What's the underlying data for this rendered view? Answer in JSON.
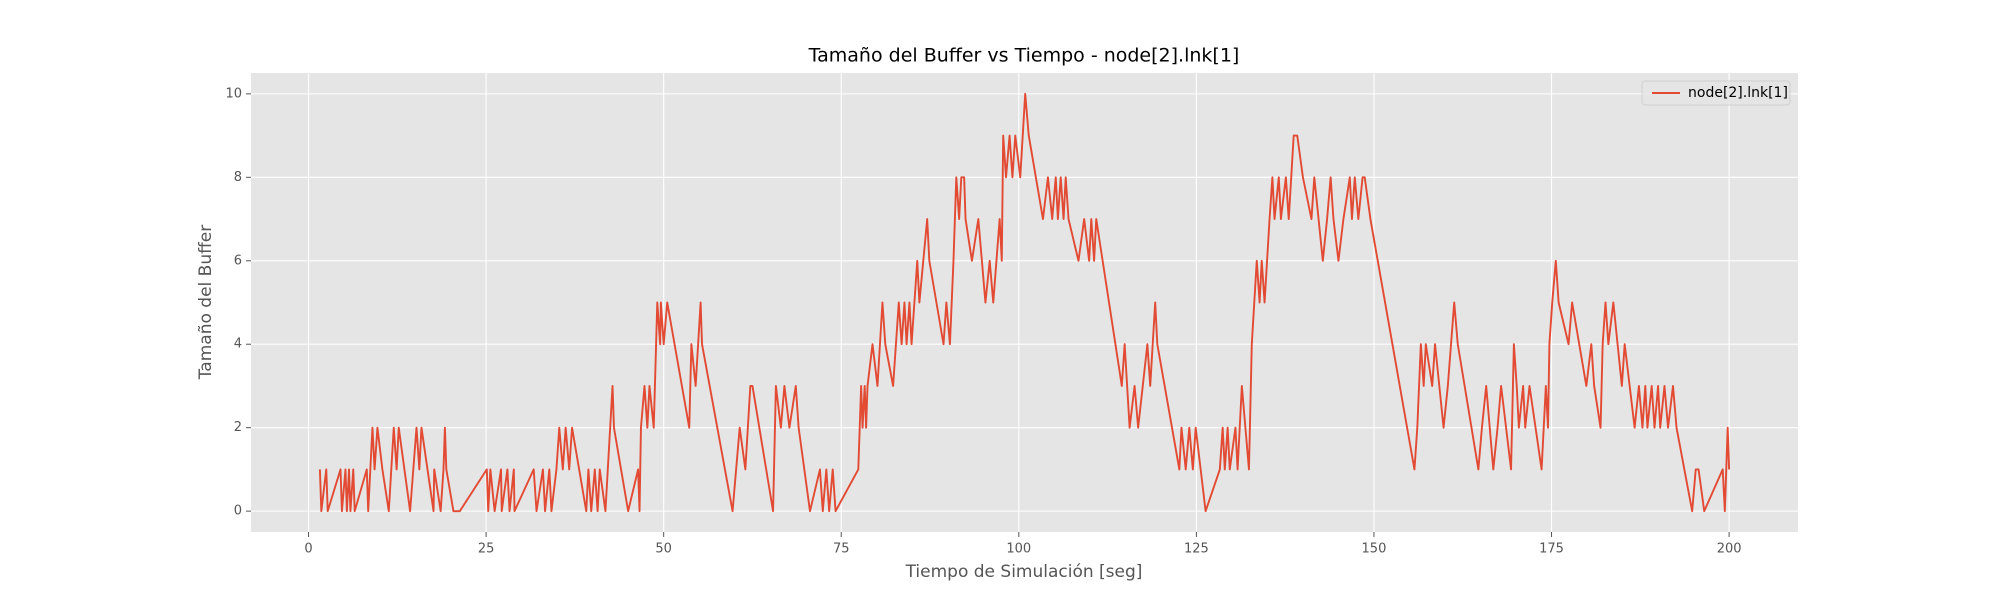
{
  "chart_data": {
    "type": "line",
    "title": "Tamaño del Buffer vs Tiempo - node[2].lnk[1]",
    "x_label": "Tiempo de Simulación [seg]",
    "y_label": "Tamaño del Buffer",
    "x": [
      1.6,
      1.8,
      2.5,
      2.7,
      4.5,
      4.7,
      5.2,
      5.4,
      5.7,
      5.9,
      6.3,
      6.5,
      8.2,
      8.4,
      9.0,
      9.3,
      9.7,
      10.4,
      11.3,
      12.0,
      12.4,
      12.7,
      14.3,
      15.2,
      15.6,
      15.9,
      17.6,
      17.7,
      18.6,
      19.0,
      19.2,
      19.4,
      20.4,
      21.3,
      25.1,
      25.3,
      25.6,
      26.2,
      27.1,
      27.2,
      28.0,
      28.3,
      28.9,
      29.0,
      31.7,
      32.1,
      33.0,
      33.3,
      33.9,
      34.2,
      34.9,
      35.3,
      35.8,
      36.2,
      36.7,
      37.1,
      39.1,
      39.4,
      39.8,
      40.3,
      40.7,
      41.0,
      41.8,
      42.8,
      43.0,
      45.0,
      46.4,
      46.6,
      46.8,
      47.3,
      47.7,
      48.0,
      48.6,
      49.1,
      49.5,
      49.6,
      50.0,
      50.5,
      53.6,
      53.9,
      54.5,
      55.2,
      55.4,
      59.7,
      60.7,
      61.5,
      62.2,
      62.5,
      65.4,
      65.8,
      66.5,
      67.0,
      67.7,
      68.6,
      69.0,
      70.6,
      72.0,
      72.4,
      72.9,
      73.3,
      73.8,
      74.2,
      77.4,
      77.8,
      78.0,
      78.3,
      78.5,
      78.7,
      79.4,
      80.1,
      80.8,
      81.2,
      82.3,
      83.1,
      83.5,
      83.9,
      84.2,
      84.6,
      84.9,
      85.7,
      86.0,
      87.1,
      87.4,
      89.4,
      89.8,
      90.3,
      90.8,
      91.2,
      91.6,
      91.9,
      92.3,
      92.5,
      93.4,
      94.3,
      95.3,
      95.9,
      96.4,
      97.3,
      97.6,
      97.8,
      98.2,
      98.7,
      99.1,
      99.5,
      100.2,
      100.9,
      101.4,
      103.4,
      104.1,
      104.7,
      105.2,
      105.5,
      105.9,
      106.3,
      106.6,
      107.0,
      108.4,
      109.2,
      109.9,
      110.2,
      110.6,
      110.9,
      114.5,
      114.9,
      115.6,
      116.3,
      116.8,
      118.1,
      118.5,
      119.2,
      119.5,
      122.6,
      122.9,
      123.5,
      124.0,
      124.5,
      124.9,
      126.3,
      128.3,
      128.7,
      129.0,
      129.4,
      129.7,
      130.5,
      130.8,
      131.4,
      132.4,
      132.8,
      133.5,
      133.9,
      134.2,
      134.6,
      135.3,
      135.7,
      136.0,
      136.6,
      136.9,
      137.6,
      138.0,
      138.7,
      139.2,
      140.0,
      141.2,
      141.6,
      142.8,
      143.4,
      143.9,
      144.3,
      145.0,
      145.7,
      146.6,
      146.9,
      147.3,
      147.8,
      148.4,
      148.7,
      149.5,
      155.7,
      156.1,
      156.6,
      157.0,
      157.3,
      158.2,
      158.6,
      159.8,
      160.4,
      161.3,
      161.8,
      164.7,
      165.2,
      165.8,
      166.8,
      167.4,
      167.9,
      169.3,
      169.7,
      170.1,
      170.4,
      171.0,
      171.3,
      171.9,
      173.6,
      174.2,
      174.5,
      174.7,
      175.1,
      175.6,
      176.0,
      177.4,
      177.9,
      179.9,
      180.6,
      181.0,
      181.9,
      182.2,
      182.6,
      183.0,
      183.7,
      184.9,
      185.3,
      186.7,
      187.3,
      187.8,
      188.2,
      188.5,
      189.1,
      189.5,
      190.0,
      190.3,
      190.9,
      191.4,
      192.1,
      192.6,
      194.8,
      195.3,
      195.7,
      196.5,
      199.1,
      199.4,
      199.8,
      200.0
    ],
    "series": [
      {
        "name": "node[2].lnk[1]",
        "color": "#E24A33",
        "values": [
          1,
          0,
          1,
          0,
          1,
          0,
          1,
          0,
          1,
          0,
          1,
          0,
          1,
          0,
          2,
          1,
          2,
          1,
          0,
          2,
          1,
          2,
          0,
          2,
          1,
          2,
          0,
          1,
          0,
          1,
          2,
          1,
          0,
          0,
          1,
          0,
          1,
          0,
          1,
          0,
          1,
          0,
          1,
          0,
          1,
          0,
          1,
          0,
          1,
          0,
          1,
          2,
          1,
          2,
          1,
          2,
          0,
          1,
          0,
          1,
          0,
          1,
          0,
          3,
          2,
          0,
          1,
          0,
          2,
          3,
          2,
          3,
          2,
          5,
          4,
          5,
          4,
          5,
          2,
          4,
          3,
          5,
          4,
          0,
          2,
          1,
          3,
          3,
          0,
          3,
          2,
          3,
          2,
          3,
          2,
          0,
          1,
          0,
          1,
          0,
          1,
          0,
          1,
          3,
          2,
          3,
          2,
          3,
          4,
          3,
          5,
          4,
          3,
          5,
          4,
          5,
          4,
          5,
          4,
          6,
          5,
          7,
          6,
          4,
          5,
          4,
          6,
          8,
          7,
          8,
          8,
          7,
          6,
          7,
          5,
          6,
          5,
          7,
          6,
          9,
          8,
          9,
          8,
          9,
          8,
          10,
          9,
          7,
          8,
          7,
          8,
          7,
          8,
          7,
          8,
          7,
          6,
          7,
          6,
          7,
          6,
          7,
          3,
          4,
          2,
          3,
          2,
          4,
          3,
          5,
          4,
          1,
          2,
          1,
          2,
          1,
          2,
          0,
          1,
          2,
          1,
          2,
          1,
          2,
          1,
          3,
          1,
          4,
          6,
          5,
          6,
          5,
          7,
          8,
          7,
          8,
          7,
          8,
          7,
          9,
          9,
          8,
          7,
          8,
          6,
          7,
          8,
          7,
          6,
          7,
          8,
          7,
          8,
          7,
          8,
          8,
          7,
          1,
          2,
          4,
          3,
          4,
          3,
          4,
          2,
          3,
          5,
          4,
          1,
          2,
          3,
          1,
          2,
          3,
          1,
          4,
          3,
          2,
          3,
          2,
          3,
          1,
          3,
          2,
          4,
          5,
          6,
          5,
          4,
          5,
          3,
          4,
          3,
          2,
          4,
          5,
          4,
          5,
          3,
          4,
          2,
          3,
          2,
          3,
          2,
          3,
          2,
          3,
          2,
          3,
          2,
          3,
          2,
          0,
          1,
          1,
          0,
          1,
          0,
          2,
          1
        ]
      }
    ],
    "xlim": [
      -8.1,
      209.7
    ],
    "ylim": [
      -0.5,
      10.5
    ],
    "xticks": [
      0,
      25,
      50,
      75,
      100,
      125,
      150,
      175,
      200
    ],
    "yticks": [
      0,
      2,
      4,
      6,
      8,
      10
    ],
    "grid": true,
    "legend": "upper right"
  }
}
